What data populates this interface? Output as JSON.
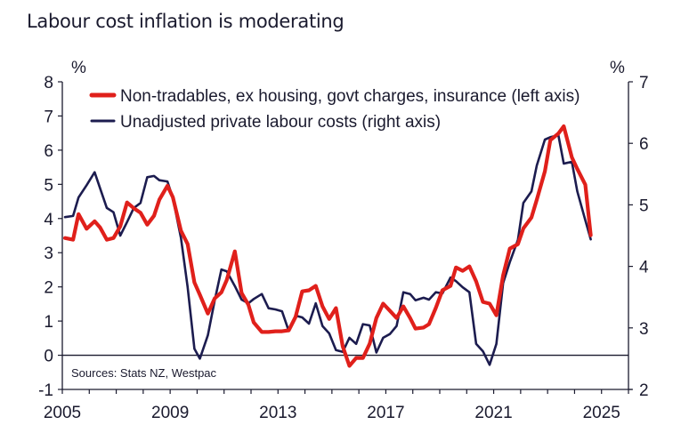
{
  "chart_data": {
    "type": "line",
    "title": "Labour cost inflation is moderating",
    "source": "Sources: Stats NZ, Westpac",
    "left_axis": {
      "unit": "%",
      "ylim": [
        -1,
        8
      ],
      "ticks": [
        -1,
        0,
        1,
        2,
        3,
        4,
        5,
        6,
        7,
        8
      ]
    },
    "right_axis": {
      "unit": "%",
      "ylim": [
        2,
        7
      ],
      "ticks": [
        2,
        3,
        4,
        5,
        6,
        7
      ]
    },
    "x_axis": {
      "xlim": [
        2005,
        2026
      ],
      "tick_labels": [
        "2005",
        "2009",
        "2013",
        "2017",
        "2021",
        "2025"
      ],
      "label_years": [
        2005,
        2009,
        2013,
        2017,
        2021,
        2025
      ],
      "minor_tick_step_years": 1
    },
    "zero_line": true,
    "legend_position": "top-left",
    "series": [
      {
        "name": "Non-tradables, ex housing, govt charges, insurance (left axis)",
        "axis": "left",
        "color": "#e0201b",
        "x": [
          2005.1,
          2005.4,
          2005.6,
          2005.9,
          2006.2,
          2006.4,
          2006.65,
          2006.9,
          2007.15,
          2007.4,
          2007.65,
          2007.9,
          2008.15,
          2008.4,
          2008.6,
          2008.9,
          2009.1,
          2009.4,
          2009.65,
          2009.9,
          2010.1,
          2010.4,
          2010.65,
          2010.9,
          2011.1,
          2011.4,
          2011.65,
          2011.9,
          2012.1,
          2012.4,
          2012.65,
          2012.9,
          2013.15,
          2013.4,
          2013.65,
          2013.9,
          2014.15,
          2014.4,
          2014.65,
          2014.9,
          2015.15,
          2015.4,
          2015.65,
          2015.9,
          2016.15,
          2016.4,
          2016.65,
          2016.9,
          2017.15,
          2017.4,
          2017.65,
          2017.9,
          2018.1,
          2018.4,
          2018.6,
          2018.85,
          2019.1,
          2019.4,
          2019.6,
          2019.85,
          2020.1,
          2020.35,
          2020.6,
          2020.85,
          2021.1,
          2021.35,
          2021.6,
          2021.9,
          2022.1,
          2022.4,
          2022.6,
          2022.9,
          2023.1,
          2023.4,
          2023.6,
          2023.9,
          2024.1,
          2024.4,
          2024.6
        ],
        "values": [
          3.43,
          3.38,
          4.13,
          3.7,
          3.92,
          3.74,
          3.38,
          3.43,
          3.77,
          4.47,
          4.3,
          4.17,
          3.82,
          4.08,
          4.55,
          4.96,
          4.62,
          3.64,
          3.25,
          2.13,
          1.77,
          1.22,
          1.66,
          1.84,
          2.2,
          3.04,
          1.82,
          1.48,
          0.96,
          0.68,
          0.68,
          0.7,
          0.7,
          0.73,
          1.12,
          1.87,
          1.9,
          2.03,
          1.43,
          1.06,
          1.38,
          0.26,
          -0.31,
          -0.08,
          -0.08,
          0.34,
          1.09,
          1.51,
          1.3,
          1.09,
          1.43,
          1.09,
          0.78,
          0.81,
          0.91,
          1.38,
          1.9,
          2.03,
          2.57,
          2.47,
          2.6,
          2.16,
          1.56,
          1.51,
          1.17,
          2.34,
          3.12,
          3.25,
          3.71,
          4.03,
          4.55,
          5.38,
          6.29,
          6.49,
          6.7,
          5.79,
          5.45,
          4.99,
          3.51
        ]
      },
      {
        "name": "Unadjusted private labour costs (right axis)",
        "axis": "right",
        "color": "#1c1c4f",
        "x": [
          2005.1,
          2005.4,
          2005.6,
          2005.9,
          2006.2,
          2006.4,
          2006.65,
          2006.9,
          2007.15,
          2007.4,
          2007.65,
          2007.9,
          2008.15,
          2008.4,
          2008.6,
          2008.9,
          2009.1,
          2009.4,
          2009.65,
          2009.9,
          2010.1,
          2010.4,
          2010.65,
          2010.9,
          2011.1,
          2011.4,
          2011.65,
          2011.9,
          2012.1,
          2012.4,
          2012.65,
          2012.9,
          2013.15,
          2013.4,
          2013.65,
          2013.9,
          2014.15,
          2014.4,
          2014.65,
          2014.9,
          2015.15,
          2015.4,
          2015.65,
          2015.9,
          2016.15,
          2016.4,
          2016.65,
          2016.9,
          2017.15,
          2017.4,
          2017.65,
          2017.9,
          2018.1,
          2018.4,
          2018.6,
          2018.85,
          2019.1,
          2019.4,
          2019.6,
          2019.85,
          2020.1,
          2020.35,
          2020.6,
          2020.85,
          2021.1,
          2021.35,
          2021.6,
          2021.9,
          2022.1,
          2022.4,
          2022.6,
          2022.9,
          2023.1,
          2023.4,
          2023.6,
          2023.9,
          2024.1,
          2024.4,
          2024.6
        ],
        "values": [
          4.8,
          4.82,
          5.12,
          5.32,
          5.53,
          5.27,
          4.95,
          4.88,
          4.5,
          4.72,
          4.95,
          5.03,
          5.45,
          5.47,
          5.4,
          5.38,
          5.11,
          4.46,
          3.66,
          2.66,
          2.5,
          2.88,
          3.44,
          3.95,
          3.92,
          3.68,
          3.46,
          3.4,
          3.47,
          3.55,
          3.32,
          3.3,
          3.27,
          2.95,
          3.2,
          3.17,
          3.07,
          3.4,
          3.03,
          2.91,
          2.64,
          2.61,
          2.84,
          2.74,
          3.06,
          3.04,
          2.6,
          2.84,
          2.9,
          3.03,
          3.58,
          3.55,
          3.45,
          3.49,
          3.46,
          3.58,
          3.56,
          3.82,
          3.76,
          3.66,
          3.58,
          2.74,
          2.62,
          2.4,
          2.74,
          3.73,
          4.07,
          4.43,
          5.03,
          5.22,
          5.64,
          6.06,
          6.1,
          6.13,
          5.67,
          5.7,
          5.22,
          4.75,
          4.44
        ]
      }
    ]
  }
}
